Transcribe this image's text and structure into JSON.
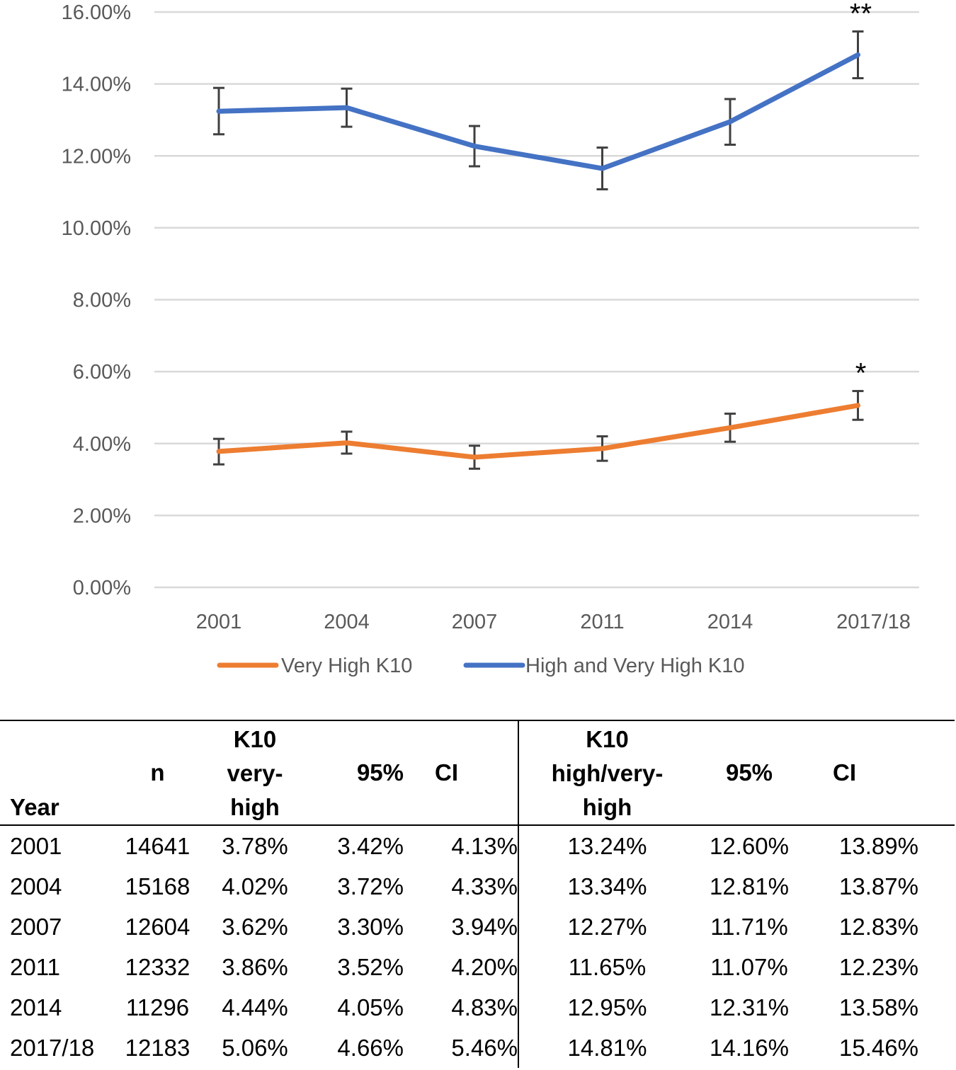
{
  "chart_data": {
    "type": "line",
    "categories": [
      "2001",
      "2004",
      "2007",
      "2011",
      "2014",
      "2017/18"
    ],
    "ylim": [
      0,
      16
    ],
    "yticks": [
      "0.00%",
      "2.00%",
      "4.00%",
      "6.00%",
      "8.00%",
      "10.00%",
      "12.00%",
      "14.00%",
      "16.00%"
    ],
    "grid": true,
    "legend": "bottom",
    "series": [
      {
        "name": "Very High K10",
        "color": "#ED7D31",
        "values": [
          3.78,
          4.02,
          3.62,
          3.86,
          4.44,
          5.06
        ],
        "ci_low": [
          3.42,
          3.72,
          3.3,
          3.52,
          4.05,
          4.66
        ],
        "ci_high": [
          4.13,
          4.33,
          3.94,
          4.2,
          4.83,
          5.46
        ],
        "annotation": "*"
      },
      {
        "name": "High and Very High K10",
        "color": "#4472C4",
        "values": [
          13.24,
          13.34,
          12.27,
          11.65,
          12.95,
          14.81
        ],
        "ci_low": [
          12.6,
          12.81,
          11.71,
          11.07,
          12.31,
          14.16
        ],
        "ci_high": [
          13.89,
          13.87,
          12.83,
          12.23,
          13.58,
          15.46
        ],
        "annotation": "**"
      }
    ]
  },
  "table": {
    "headers": {
      "year": "Year",
      "n": "n",
      "k10vh": [
        "K10",
        "very-",
        "high"
      ],
      "ci95_a": "95%",
      "ci_a": "CI",
      "k10hvh": [
        "K10",
        "high/very-",
        "high"
      ],
      "ci95_b": "95%",
      "ci_b": "CI"
    },
    "rows": [
      [
        "2001",
        "14641",
        "3.78%",
        "3.42%",
        "4.13%",
        "13.24%",
        "12.60%",
        "13.89%"
      ],
      [
        "2004",
        "15168",
        "4.02%",
        "3.72%",
        "4.33%",
        "13.34%",
        "12.81%",
        "13.87%"
      ],
      [
        "2007",
        "12604",
        "3.62%",
        "3.30%",
        "3.94%",
        "12.27%",
        "11.71%",
        "12.83%"
      ],
      [
        "2011",
        "12332",
        "3.86%",
        "3.52%",
        "4.20%",
        "11.65%",
        "11.07%",
        "12.23%"
      ],
      [
        "2014",
        "11296",
        "4.44%",
        "4.05%",
        "4.83%",
        "12.95%",
        "12.31%",
        "13.58%"
      ],
      [
        "2017/18",
        "12183",
        "5.06%",
        "4.66%",
        "5.46%",
        "14.81%",
        "14.16%",
        "15.46%"
      ]
    ]
  }
}
